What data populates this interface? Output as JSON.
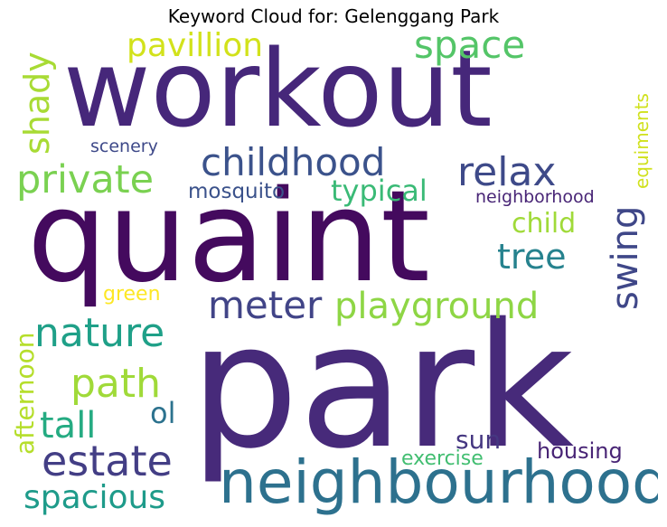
{
  "title": "Keyword Cloud for: Gelenggang Park",
  "words": [
    {
      "text": "workout",
      "weight": 0.85,
      "color": "#46277a"
    },
    {
      "text": "quaint",
      "weight": 1.0,
      "color": "#440a5e"
    },
    {
      "text": "park",
      "weight": 0.98,
      "color": "#472a7a"
    },
    {
      "text": "neighbourhood",
      "weight": 0.45,
      "color": "#2d718e"
    },
    {
      "text": "pavillion",
      "weight": 0.22,
      "color": "#d2e21b"
    },
    {
      "text": "space",
      "weight": 0.24,
      "color": "#54c568"
    },
    {
      "text": "shady",
      "weight": 0.2,
      "color": "#a8db34"
    },
    {
      "text": "scenery",
      "weight": 0.12,
      "color": "#3e4989"
    },
    {
      "text": "childhood",
      "weight": 0.26,
      "color": "#3b528b"
    },
    {
      "text": "private",
      "weight": 0.27,
      "color": "#7ad151"
    },
    {
      "text": "relax",
      "weight": 0.27,
      "color": "#3e4a89"
    },
    {
      "text": "equiments",
      "weight": 0.15,
      "color": "#d0e11c"
    },
    {
      "text": "mosquito",
      "weight": 0.15,
      "color": "#3b528b"
    },
    {
      "text": "typical",
      "weight": 0.18,
      "color": "#3aba76"
    },
    {
      "text": "neighborhood",
      "weight": 0.12,
      "color": "#482576"
    },
    {
      "text": "swing",
      "weight": 0.24,
      "color": "#3f4788"
    },
    {
      "text": "child",
      "weight": 0.18,
      "color": "#a0da39"
    },
    {
      "text": "tree",
      "weight": 0.22,
      "color": "#26828e"
    },
    {
      "text": "green",
      "weight": 0.13,
      "color": "#fde725"
    },
    {
      "text": "meter",
      "weight": 0.24,
      "color": "#414487"
    },
    {
      "text": "playground",
      "weight": 0.24,
      "color": "#8ed645"
    },
    {
      "text": "afternoon",
      "weight": 0.18,
      "color": "#b5de2b"
    },
    {
      "text": "nature",
      "weight": 0.27,
      "color": "#1fa088"
    },
    {
      "text": "path",
      "weight": 0.26,
      "color": "#a0da39"
    },
    {
      "text": "ol",
      "weight": 0.18,
      "color": "#2c728e"
    },
    {
      "text": "tall",
      "weight": 0.24,
      "color": "#25ab82"
    },
    {
      "text": "sun",
      "weight": 0.18,
      "color": "#453781"
    },
    {
      "text": "estate",
      "weight": 0.3,
      "color": "#433e85"
    },
    {
      "text": "exercise",
      "weight": 0.15,
      "color": "#42be71"
    },
    {
      "text": "housing",
      "weight": 0.15,
      "color": "#482475"
    },
    {
      "text": "spacious",
      "weight": 0.24,
      "color": "#1e9b8a"
    }
  ]
}
